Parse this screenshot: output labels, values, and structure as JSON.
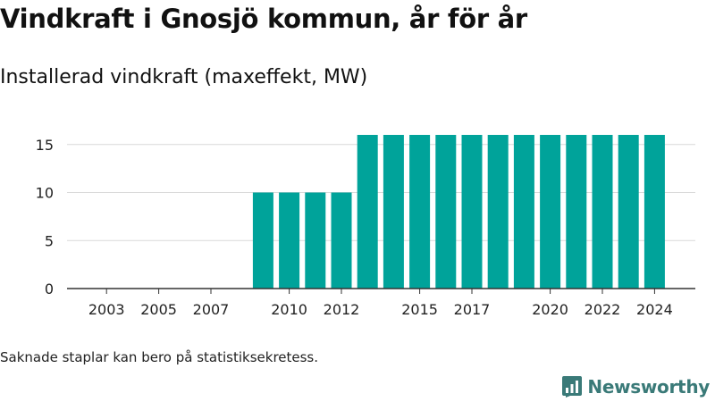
{
  "title": "Vindkraft i Gnosjö kommun, år för år",
  "subtitle": "Installerad vindkraft (maxeffekt, MW)",
  "footnote": "Saknade staplar kan bero på statistiksekretess.",
  "brand": {
    "name": "Newsworthy",
    "icon": "newsworthy-logo-icon"
  },
  "colors": {
    "bar": "#00a39a",
    "grid": "#d9d9d9",
    "axis": "#333333",
    "brand": "#3a7a78"
  },
  "chart_data": {
    "type": "bar",
    "categories": [
      "2002",
      "2003",
      "2004",
      "2005",
      "2006",
      "2007",
      "2008",
      "2009",
      "2010",
      "2011",
      "2012",
      "2013",
      "2014",
      "2015",
      "2016",
      "2017",
      "2018",
      "2019",
      "2020",
      "2021",
      "2022",
      "2023",
      "2024"
    ],
    "values": [
      0,
      0,
      0,
      0,
      0,
      0,
      0,
      10,
      10,
      10,
      10,
      16,
      16,
      16,
      16,
      16,
      16,
      16,
      16,
      16,
      16,
      16,
      16
    ],
    "x_tick_labels": [
      "2003",
      "2005",
      "2007",
      "2010",
      "2012",
      "2015",
      "2017",
      "2020",
      "2022",
      "2024"
    ],
    "y_ticks": [
      0,
      5,
      10,
      15
    ],
    "ylim": [
      0,
      17.5
    ],
    "grid": true,
    "title": "Vindkraft i Gnosjö kommun, år för år",
    "ylabel": "Installerad vindkraft (maxeffekt, MW)"
  }
}
